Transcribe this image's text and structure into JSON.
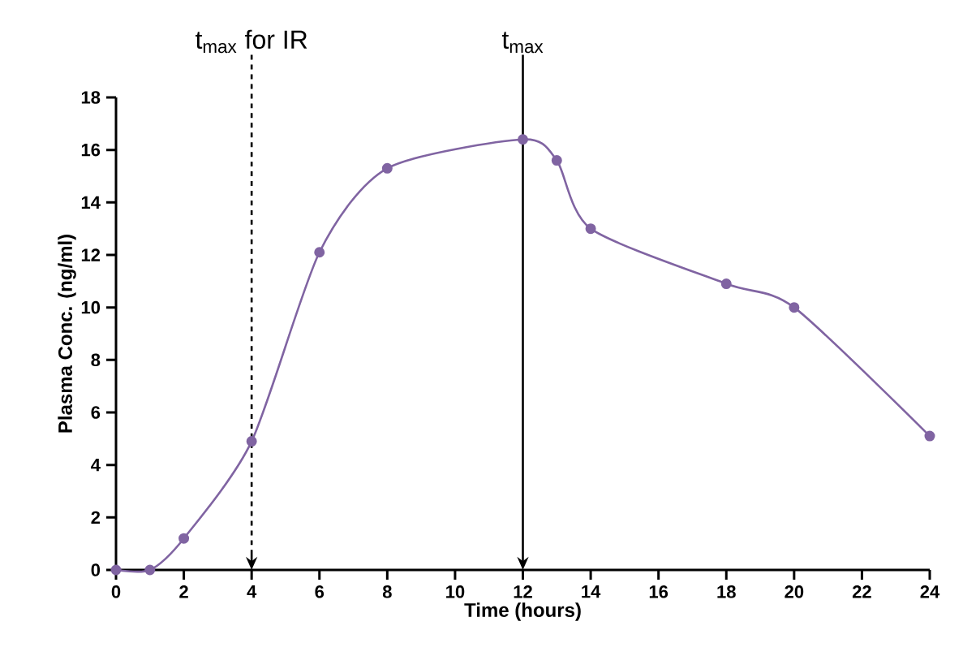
{
  "chart_data": {
    "type": "line",
    "xlabel": "Time (hours)",
    "ylabel": "Plasma Conc. (ng/ml)",
    "x": [
      0,
      1,
      2,
      4,
      6,
      8,
      12,
      13,
      14,
      18,
      20,
      24
    ],
    "series": [
      {
        "color": "#8064a2",
        "values": [
          0,
          0,
          1.2,
          4.9,
          12.1,
          15.3,
          16.4,
          15.6,
          13.0,
          10.9,
          10.0,
          5.1
        ]
      }
    ],
    "xlim": [
      0,
      24
    ],
    "xticks": [
      0,
      2,
      4,
      6,
      8,
      10,
      12,
      14,
      16,
      18,
      20,
      22,
      24
    ],
    "ylim": [
      0,
      18
    ],
    "yticks": [
      0,
      2,
      4,
      6,
      8,
      10,
      12,
      14,
      16,
      18
    ],
    "marker": "circle",
    "line_style": "solid",
    "ref_lines": [
      {
        "axis": "x",
        "value": 4,
        "label": "t$_{max}$ for IR",
        "color": "#000000",
        "line_style": "dashed"
      },
      {
        "axis": "x",
        "value": 12,
        "label": "t$_{max}$",
        "color": "#000000",
        "line_style": "solid"
      }
    ]
  }
}
